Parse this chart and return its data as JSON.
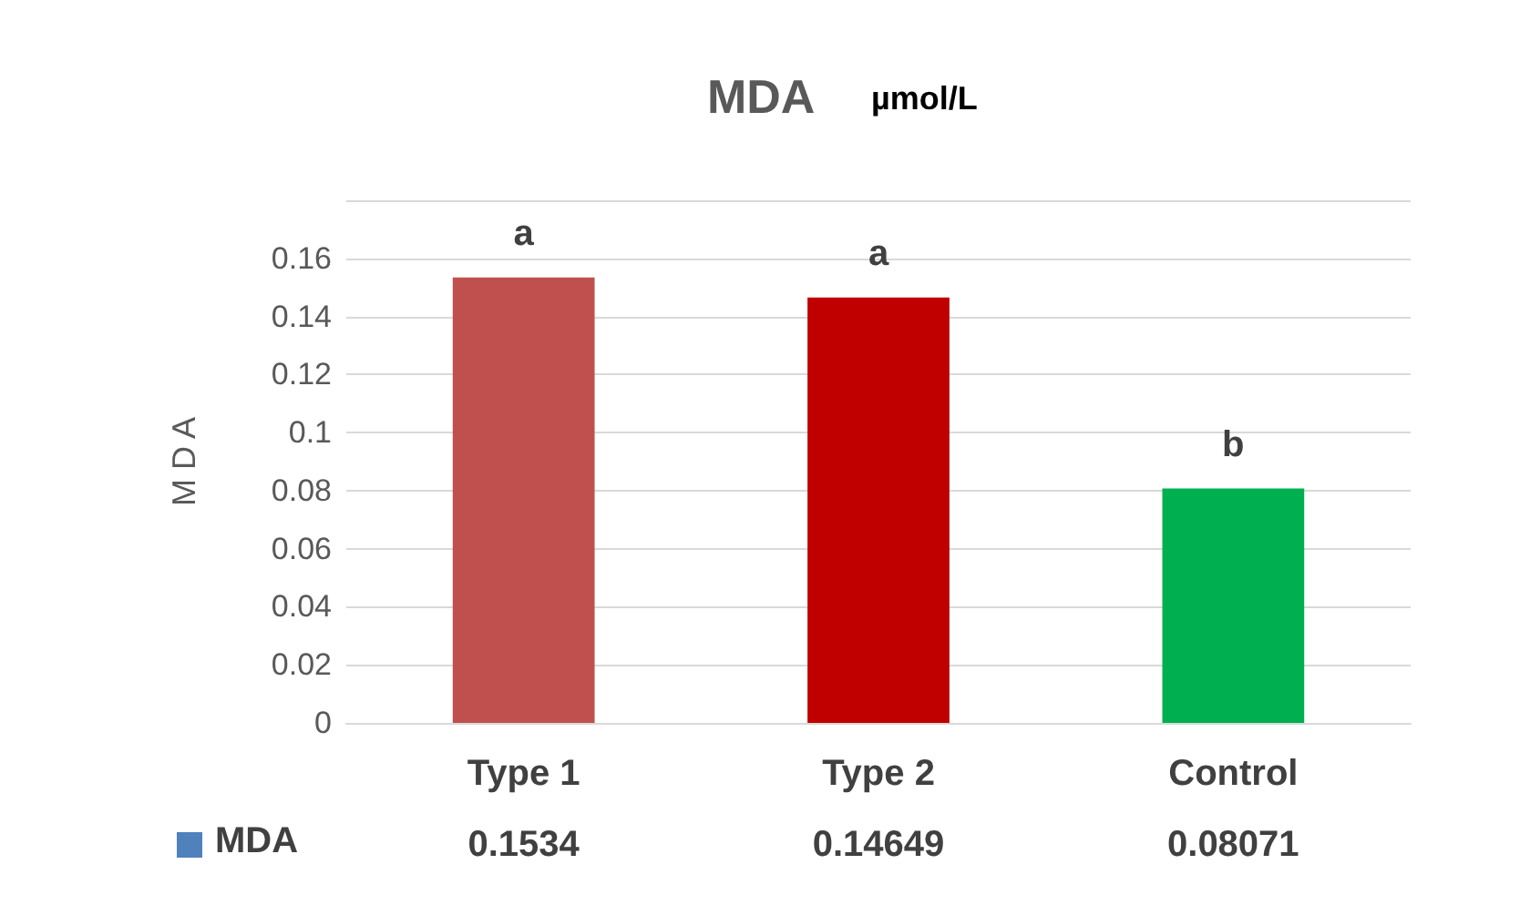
{
  "chart_data": {
    "type": "bar",
    "title": "MDA",
    "subtitle": "µmol/L",
    "ylabel": "M D A",
    "categories": [
      "Type 1",
      "Type 2",
      "Control"
    ],
    "series": [
      {
        "name": "MDA",
        "color": "#4f81bd",
        "colors": [
          "#c0504d",
          "#c00000",
          "#00b050"
        ],
        "values": [
          0.1534,
          0.14649,
          0.08071
        ]
      }
    ],
    "ylim": [
      0,
      0.18
    ],
    "yticks": [
      0,
      0.02,
      0.04,
      0.06,
      0.08,
      0.1,
      0.12,
      0.14,
      0.16,
      {
        "value": 0.18,
        "label": null
      }
    ],
    "grid": "y",
    "data_labels": true,
    "annotations": [
      {
        "text": "a",
        "x": "Type 1",
        "y": 0.1534
      },
      {
        "text": "a",
        "x": "Type 2",
        "y": 0.14649
      },
      {
        "text": "b",
        "x": "Control",
        "y": 0.08071
      }
    ]
  }
}
